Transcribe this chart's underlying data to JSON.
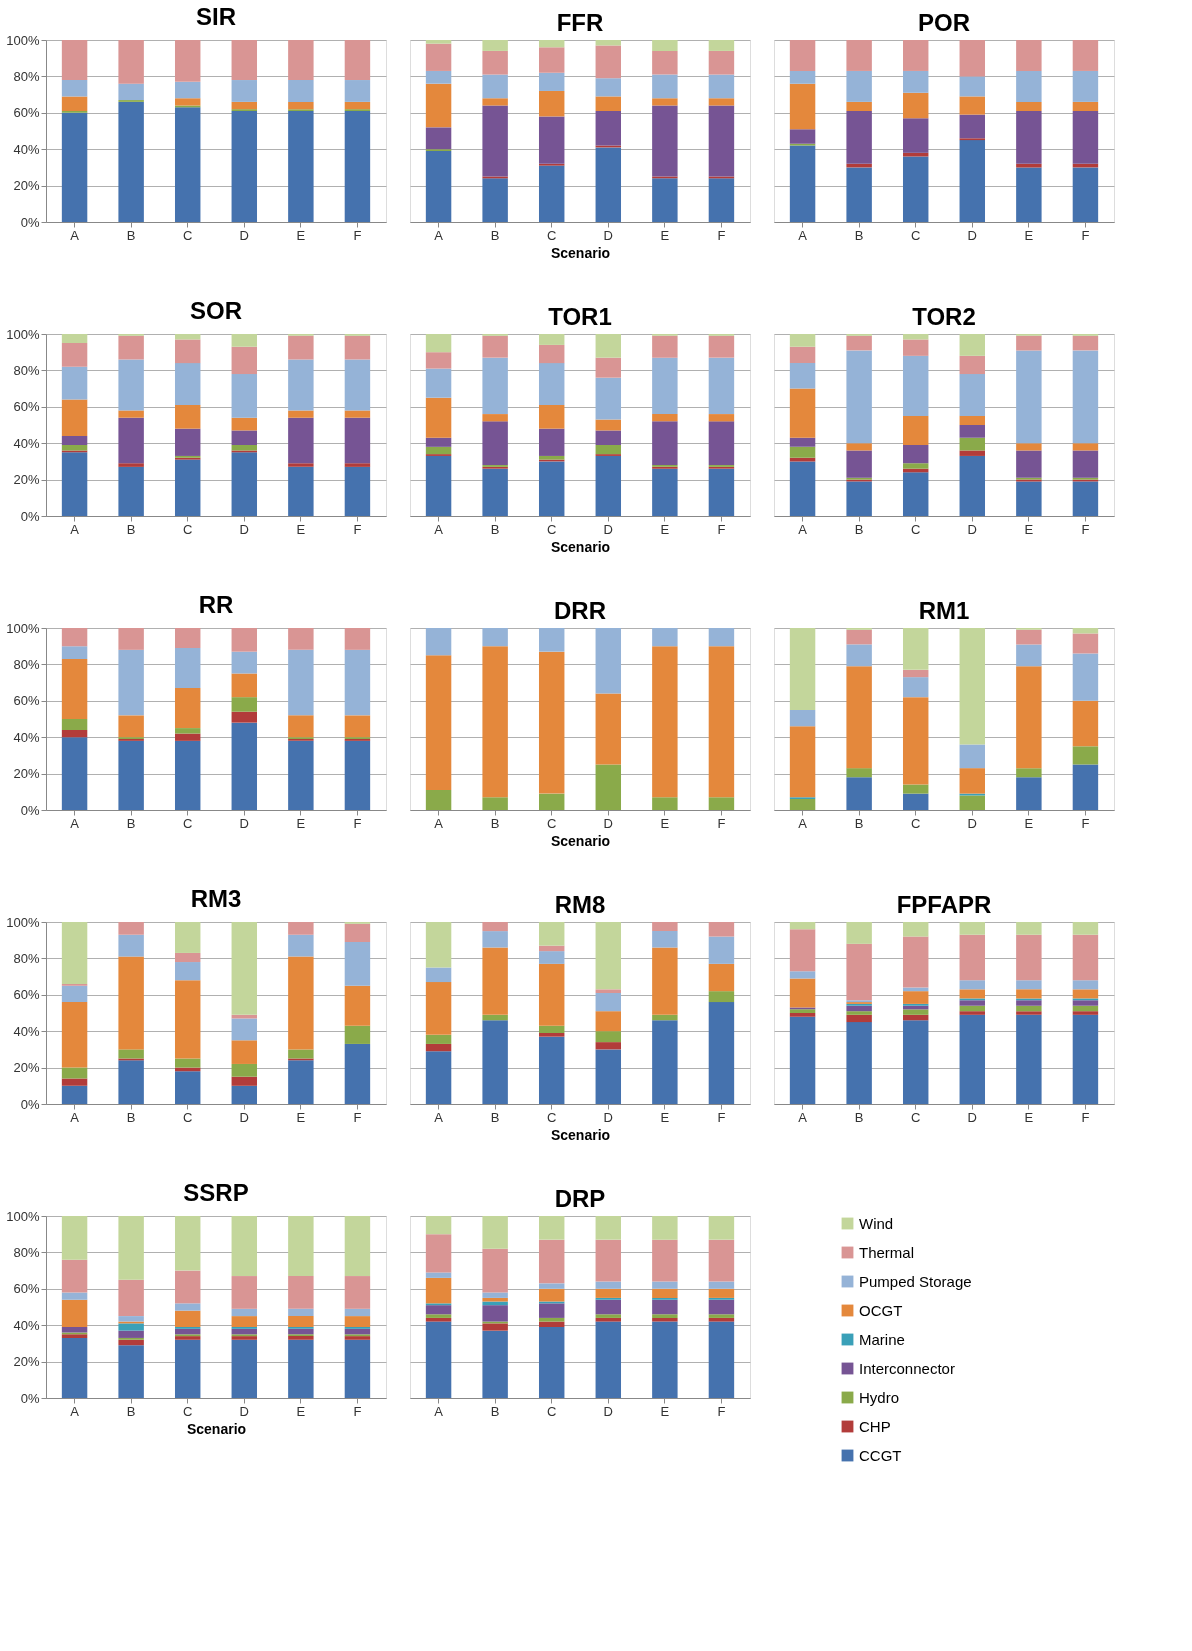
{
  "chart_data": [
    {
      "type": "bar",
      "stacked": true,
      "title": "SIR",
      "categories": [
        "A",
        "B",
        "C",
        "D",
        "E",
        "F"
      ],
      "ylim": [
        0,
        100
      ],
      "yticks": [
        {
          "value": 0,
          "label": "0%"
        },
        {
          "value": 20,
          "label": "20%"
        },
        {
          "value": 40,
          "label": "40%"
        },
        {
          "value": 60,
          "label": "60%"
        },
        {
          "value": 80,
          "label": "80%"
        },
        {
          "value": 100,
          "label": "100%"
        }
      ],
      "grid": "y",
      "series": [
        {
          "color": "#4572ae",
          "values": [
            60,
            66,
            63,
            61,
            61,
            61
          ]
        },
        {
          "color": "#8aaa4a",
          "values": [
            1,
            1,
            1,
            1,
            1,
            1
          ]
        },
        {
          "color": "#e4883c",
          "values": [
            8,
            0,
            4,
            4,
            4,
            4
          ]
        },
        {
          "color": "#95b3d7",
          "values": [
            9,
            9,
            9,
            12,
            12,
            12
          ]
        },
        {
          "color": "#d99594",
          "values": [
            22,
            24,
            23,
            22,
            22,
            22
          ]
        }
      ]
    },
    {
      "type": "bar",
      "stacked": true,
      "title": "FFR",
      "xlabel": "Scenario",
      "tick_labels": "x",
      "categories": [
        "A",
        "B",
        "C",
        "D",
        "E",
        "F"
      ],
      "ylim": [
        0,
        100
      ],
      "grid": "y",
      "series": [
        {
          "color": "#4572ae",
          "values": [
            39,
            24,
            31,
            41,
            24,
            24
          ]
        },
        {
          "color": "#b23c3a",
          "values": [
            0,
            1,
            1,
            1,
            1,
            1
          ]
        },
        {
          "color": "#8aaa4a",
          "values": [
            1,
            0,
            0,
            0,
            0,
            0
          ]
        },
        {
          "color": "#765494",
          "values": [
            12,
            39,
            26,
            19,
            39,
            39
          ]
        },
        {
          "color": "#e4883c",
          "values": [
            24,
            4,
            14,
            8,
            4,
            4
          ]
        },
        {
          "color": "#95b3d7",
          "values": [
            7,
            13,
            10,
            10,
            13,
            13
          ]
        },
        {
          "color": "#d99594",
          "values": [
            15,
            13,
            14,
            18,
            13,
            13
          ]
        },
        {
          "color": "#c3d69b",
          "values": [
            2,
            6,
            4,
            3,
            6,
            6
          ]
        }
      ]
    },
    {
      "type": "bar",
      "stacked": true,
      "title": "POR",
      "tick_labels": "x",
      "categories": [
        "A",
        "B",
        "C",
        "D",
        "E",
        "F"
      ],
      "ylim": [
        0,
        100
      ],
      "grid": "y",
      "series": [
        {
          "color": "#4572ae",
          "values": [
            42,
            30,
            36,
            45,
            30,
            30
          ]
        },
        {
          "color": "#b23c3a",
          "values": [
            0,
            2,
            2,
            1,
            2,
            2
          ]
        },
        {
          "color": "#8aaa4a",
          "values": [
            1,
            0,
            0,
            0,
            0,
            0
          ]
        },
        {
          "color": "#765494",
          "values": [
            8,
            29,
            19,
            13,
            29,
            29
          ]
        },
        {
          "color": "#e4883c",
          "values": [
            25,
            5,
            14,
            10,
            5,
            5
          ]
        },
        {
          "color": "#95b3d7",
          "values": [
            7,
            17,
            12,
            11,
            17,
            17
          ]
        },
        {
          "color": "#d99594",
          "values": [
            17,
            17,
            17,
            20,
            17,
            17
          ]
        }
      ]
    },
    {
      "type": "bar",
      "stacked": true,
      "title": "SOR",
      "categories": [
        "A",
        "B",
        "C",
        "D",
        "E",
        "F"
      ],
      "ylim": [
        0,
        100
      ],
      "yticks": [
        {
          "value": 0,
          "label": "0%"
        },
        {
          "value": 20,
          "label": "20%"
        },
        {
          "value": 40,
          "label": "40%"
        },
        {
          "value": 60,
          "label": "60%"
        },
        {
          "value": 80,
          "label": "80%"
        },
        {
          "value": 100,
          "label": "100%"
        }
      ],
      "grid": "y",
      "series": [
        {
          "color": "#4572ae",
          "values": [
            35,
            27,
            31,
            35,
            27,
            27
          ]
        },
        {
          "color": "#b23c3a",
          "values": [
            1,
            2,
            1,
            1,
            2,
            2
          ]
        },
        {
          "color": "#8aaa4a",
          "values": [
            3,
            0,
            1,
            3,
            0,
            0
          ]
        },
        {
          "color": "#765494",
          "values": [
            5,
            25,
            15,
            8,
            25,
            25
          ]
        },
        {
          "color": "#e4883c",
          "values": [
            20,
            4,
            13,
            7,
            4,
            4
          ]
        },
        {
          "color": "#95b3d7",
          "values": [
            18,
            28,
            23,
            24,
            28,
            28
          ]
        },
        {
          "color": "#d99594",
          "values": [
            13,
            13,
            13,
            15,
            13,
            13
          ]
        },
        {
          "color": "#c3d69b",
          "values": [
            5,
            1,
            3,
            7,
            1,
            1
          ]
        }
      ]
    },
    {
      "type": "bar",
      "stacked": true,
      "title": "TOR1",
      "xlabel": "Scenario",
      "tick_labels": "x",
      "categories": [
        "A",
        "B",
        "C",
        "D",
        "E",
        "F"
      ],
      "ylim": [
        0,
        100
      ],
      "grid": "y",
      "series": [
        {
          "color": "#4572ae",
          "values": [
            33,
            26,
            30,
            33,
            26,
            26
          ]
        },
        {
          "color": "#b23c3a",
          "values": [
            1,
            1,
            1,
            1,
            1,
            1
          ]
        },
        {
          "color": "#8aaa4a",
          "values": [
            4,
            1,
            2,
            5,
            1,
            1
          ]
        },
        {
          "color": "#765494",
          "values": [
            5,
            24,
            15,
            8,
            24,
            24
          ]
        },
        {
          "color": "#e4883c",
          "values": [
            22,
            4,
            13,
            6,
            4,
            4
          ]
        },
        {
          "color": "#95b3d7",
          "values": [
            16,
            31,
            23,
            23,
            31,
            31
          ]
        },
        {
          "color": "#d99594",
          "values": [
            9,
            12,
            10,
            11,
            12,
            12
          ]
        },
        {
          "color": "#c3d69b",
          "values": [
            10,
            1,
            6,
            13,
            1,
            1
          ]
        }
      ]
    },
    {
      "type": "bar",
      "stacked": true,
      "title": "TOR2",
      "tick_labels": "x",
      "categories": [
        "A",
        "B",
        "C",
        "D",
        "E",
        "F"
      ],
      "ylim": [
        0,
        100
      ],
      "grid": "y",
      "series": [
        {
          "color": "#4572ae",
          "values": [
            30,
            19,
            24,
            33,
            19,
            19
          ]
        },
        {
          "color": "#b23c3a",
          "values": [
            2,
            1,
            2,
            3,
            1,
            1
          ]
        },
        {
          "color": "#8aaa4a",
          "values": [
            6,
            1,
            3,
            7,
            1,
            1
          ]
        },
        {
          "color": "#765494",
          "values": [
            5,
            15,
            10,
            7,
            15,
            15
          ]
        },
        {
          "color": "#e4883c",
          "values": [
            27,
            4,
            16,
            5,
            4,
            4
          ]
        },
        {
          "color": "#95b3d7",
          "values": [
            14,
            51,
            33,
            23,
            51,
            51
          ]
        },
        {
          "color": "#d99594",
          "values": [
            9,
            8,
            9,
            10,
            8,
            8
          ]
        },
        {
          "color": "#c3d69b",
          "values": [
            7,
            1,
            3,
            12,
            1,
            1
          ]
        }
      ]
    },
    {
      "type": "bar",
      "stacked": true,
      "title": "RR",
      "categories": [
        "A",
        "B",
        "C",
        "D",
        "E",
        "F"
      ],
      "ylim": [
        0,
        100
      ],
      "yticks": [
        {
          "value": 0,
          "label": "0%"
        },
        {
          "value": 20,
          "label": "20%"
        },
        {
          "value": 40,
          "label": "40%"
        },
        {
          "value": 60,
          "label": "60%"
        },
        {
          "value": 80,
          "label": "80%"
        },
        {
          "value": 100,
          "label": "100%"
        }
      ],
      "grid": "y",
      "series": [
        {
          "color": "#4572ae",
          "values": [
            40,
            38,
            38,
            48,
            38,
            38
          ]
        },
        {
          "color": "#b23c3a",
          "values": [
            4,
            1,
            4,
            6,
            1,
            1
          ]
        },
        {
          "color": "#8aaa4a",
          "values": [
            6,
            1,
            3,
            8,
            1,
            1
          ]
        },
        {
          "color": "#e4883c",
          "values": [
            33,
            12,
            22,
            13,
            12,
            12
          ]
        },
        {
          "color": "#95b3d7",
          "values": [
            7,
            36,
            22,
            12,
            36,
            36
          ]
        },
        {
          "color": "#d99594",
          "values": [
            10,
            12,
            11,
            13,
            12,
            12
          ]
        }
      ]
    },
    {
      "type": "bar",
      "stacked": true,
      "title": "DRR",
      "xlabel": "Scenario",
      "tick_labels": "x",
      "categories": [
        "A",
        "B",
        "C",
        "D",
        "E",
        "F"
      ],
      "ylim": [
        0,
        100
      ],
      "grid": "y",
      "series": [
        {
          "color": "#8aaa4a",
          "values": [
            11,
            7,
            9,
            25,
            7,
            7
          ]
        },
        {
          "color": "#e4883c",
          "values": [
            74,
            83,
            78,
            39,
            83,
            83
          ]
        },
        {
          "color": "#95b3d7",
          "values": [
            15,
            10,
            13,
            36,
            10,
            10
          ]
        }
      ]
    },
    {
      "type": "bar",
      "stacked": true,
      "title": "RM1",
      "tick_labels": "x",
      "categories": [
        "A",
        "B",
        "C",
        "D",
        "E",
        "F"
      ],
      "ylim": [
        0,
        100
      ],
      "grid": "y",
      "series": [
        {
          "color": "#4572ae",
          "values": [
            0,
            18,
            9,
            0,
            18,
            25
          ]
        },
        {
          "color": "#8aaa4a",
          "values": [
            6,
            5,
            5,
            8,
            5,
            10
          ]
        },
        {
          "color": "#3aa0b8",
          "values": [
            1,
            0,
            0,
            1,
            0,
            0
          ]
        },
        {
          "color": "#e4883c",
          "values": [
            39,
            56,
            48,
            14,
            56,
            25
          ]
        },
        {
          "color": "#95b3d7",
          "values": [
            9,
            12,
            11,
            13,
            12,
            26
          ]
        },
        {
          "color": "#d99594",
          "values": [
            0,
            8,
            4,
            0,
            8,
            11
          ]
        },
        {
          "color": "#c3d69b",
          "values": [
            45,
            1,
            23,
            64,
            1,
            3
          ]
        }
      ]
    },
    {
      "type": "bar",
      "stacked": true,
      "title": "RM3",
      "categories": [
        "A",
        "B",
        "C",
        "D",
        "E",
        "F"
      ],
      "ylim": [
        0,
        100
      ],
      "yticks": [
        {
          "value": 0,
          "label": "0%"
        },
        {
          "value": 20,
          "label": "20%"
        },
        {
          "value": 40,
          "label": "40%"
        },
        {
          "value": 60,
          "label": "60%"
        },
        {
          "value": 80,
          "label": "80%"
        },
        {
          "value": 100,
          "label": "100%"
        }
      ],
      "grid": "y",
      "series": [
        {
          "color": "#4572ae",
          "values": [
            10,
            24,
            18,
            10,
            24,
            33
          ]
        },
        {
          "color": "#b23c3a",
          "values": [
            4,
            1,
            2,
            5,
            1,
            0
          ]
        },
        {
          "color": "#8aaa4a",
          "values": [
            6,
            5,
            5,
            7,
            5,
            10
          ]
        },
        {
          "color": "#e4883c",
          "values": [
            36,
            51,
            43,
            13,
            51,
            22
          ]
        },
        {
          "color": "#95b3d7",
          "values": [
            9,
            12,
            10,
            12,
            12,
            24
          ]
        },
        {
          "color": "#d99594",
          "values": [
            1,
            7,
            5,
            2,
            7,
            10
          ]
        },
        {
          "color": "#c3d69b",
          "values": [
            34,
            0,
            17,
            51,
            0,
            1
          ]
        }
      ]
    },
    {
      "type": "bar",
      "stacked": true,
      "title": "RM8",
      "xlabel": "Scenario",
      "tick_labels": "x",
      "categories": [
        "A",
        "B",
        "C",
        "D",
        "E",
        "F"
      ],
      "ylim": [
        0,
        100
      ],
      "grid": "y",
      "series": [
        {
          "color": "#4572ae",
          "values": [
            29,
            46,
            37,
            30,
            46,
            56
          ]
        },
        {
          "color": "#b23c3a",
          "values": [
            4,
            0,
            2,
            4,
            0,
            0
          ]
        },
        {
          "color": "#8aaa4a",
          "values": [
            5,
            3,
            4,
            6,
            3,
            6
          ]
        },
        {
          "color": "#e4883c",
          "values": [
            29,
            37,
            34,
            11,
            37,
            15
          ]
        },
        {
          "color": "#95b3d7",
          "values": [
            8,
            9,
            7,
            10,
            9,
            15
          ]
        },
        {
          "color": "#d99594",
          "values": [
            0,
            5,
            3,
            2,
            5,
            8
          ]
        },
        {
          "color": "#c3d69b",
          "values": [
            25,
            0,
            13,
            37,
            0,
            0
          ]
        }
      ]
    },
    {
      "type": "bar",
      "stacked": true,
      "title": "FPFAPR",
      "tick_labels": "x",
      "categories": [
        "A",
        "B",
        "C",
        "D",
        "E",
        "F"
      ],
      "ylim": [
        0,
        100
      ],
      "grid": "y",
      "series": [
        {
          "color": "#4572ae",
          "values": [
            48,
            45,
            46,
            49,
            49,
            49
          ]
        },
        {
          "color": "#b23c3a",
          "values": [
            2,
            4,
            3,
            2,
            2,
            2
          ]
        },
        {
          "color": "#8aaa4a",
          "values": [
            2,
            2,
            3,
            3,
            3,
            3
          ]
        },
        {
          "color": "#765494",
          "values": [
            1,
            3,
            2,
            3,
            3,
            3
          ]
        },
        {
          "color": "#3aa0b8",
          "values": [
            0,
            1,
            1,
            1,
            1,
            1
          ]
        },
        {
          "color": "#e4883c",
          "values": [
            16,
            1,
            7,
            5,
            5,
            5
          ]
        },
        {
          "color": "#95b3d7",
          "values": [
            4,
            1,
            2,
            5,
            5,
            5
          ]
        },
        {
          "color": "#d99594",
          "values": [
            23,
            31,
            28,
            25,
            25,
            25
          ]
        },
        {
          "color": "#c3d69b",
          "values": [
            4,
            12,
            8,
            7,
            7,
            7
          ]
        }
      ]
    },
    {
      "type": "bar",
      "stacked": true,
      "title": "SSRP",
      "xlabel": "Scenario",
      "categories": [
        "A",
        "B",
        "C",
        "D",
        "E",
        "F"
      ],
      "ylim": [
        0,
        100
      ],
      "yticks": [
        {
          "value": 0,
          "label": "0%"
        },
        {
          "value": 20,
          "label": "20%"
        },
        {
          "value": 40,
          "label": "40%"
        },
        {
          "value": 60,
          "label": "60%"
        },
        {
          "value": 80,
          "label": "80%"
        },
        {
          "value": 100,
          "label": "100%"
        }
      ],
      "grid": "y",
      "series": [
        {
          "color": "#4572ae",
          "values": [
            33,
            29,
            32,
            32,
            32,
            32
          ]
        },
        {
          "color": "#b23c3a",
          "values": [
            2,
            3,
            2,
            2,
            2,
            2
          ]
        },
        {
          "color": "#8aaa4a",
          "values": [
            1,
            1,
            1,
            1,
            1,
            1
          ]
        },
        {
          "color": "#765494",
          "values": [
            3,
            4,
            3,
            3,
            3,
            3
          ]
        },
        {
          "color": "#3aa0b8",
          "values": [
            0,
            4,
            1,
            1,
            1,
            1
          ]
        },
        {
          "color": "#e4883c",
          "values": [
            15,
            1,
            9,
            6,
            6,
            6
          ]
        },
        {
          "color": "#95b3d7",
          "values": [
            4,
            3,
            4,
            4,
            4,
            4
          ]
        },
        {
          "color": "#d99594",
          "values": [
            18,
            20,
            18,
            18,
            18,
            18
          ]
        },
        {
          "color": "#c3d69b",
          "values": [
            24,
            35,
            30,
            33,
            33,
            33
          ]
        }
      ]
    },
    {
      "type": "bar",
      "stacked": true,
      "title": "DRP",
      "tick_labels": "x",
      "legend": "right",
      "categories": [
        "A",
        "B",
        "C",
        "D",
        "E",
        "F"
      ],
      "ylim": [
        0,
        100
      ],
      "grid": "y",
      "series": [
        {
          "name": "CCGT",
          "color": "#4572ae",
          "values": [
            42,
            37,
            39,
            42,
            42,
            42
          ]
        },
        {
          "name": "CHP",
          "color": "#b23c3a",
          "values": [
            2,
            4,
            3,
            2,
            2,
            2
          ]
        },
        {
          "name": "Hydro",
          "color": "#8aaa4a",
          "values": [
            2,
            1,
            2,
            2,
            2,
            2
          ]
        },
        {
          "name": "Interconnector",
          "color": "#765494",
          "values": [
            5,
            9,
            8,
            8,
            8,
            8
          ]
        },
        {
          "name": "Marine",
          "color": "#3aa0b8",
          "values": [
            1,
            2,
            1,
            1,
            1,
            1
          ]
        },
        {
          "name": "OCGT",
          "color": "#e4883c",
          "values": [
            14,
            2,
            7,
            5,
            5,
            5
          ]
        },
        {
          "name": "Pumped Storage",
          "color": "#95b3d7",
          "values": [
            3,
            3,
            3,
            4,
            4,
            4
          ]
        },
        {
          "name": "Thermal",
          "color": "#d99594",
          "values": [
            21,
            24,
            24,
            23,
            23,
            23
          ]
        },
        {
          "name": "Wind",
          "color": "#c3d69b",
          "values": [
            10,
            18,
            13,
            13,
            13,
            13
          ]
        }
      ]
    }
  ]
}
